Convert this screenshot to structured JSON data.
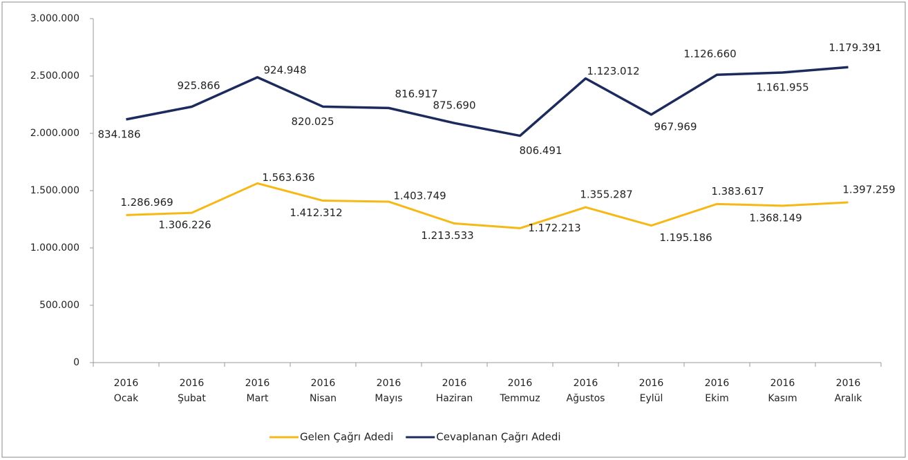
{
  "chart_data": {
    "type": "stacked-line",
    "categories": [
      "2016 Ocak",
      "2016 Şubat",
      "2016 Mart",
      "2016 Nisan",
      "2016 Mayıs",
      "2016 Haziran",
      "2016 Temmuz",
      "2016 Ağustos",
      "2016 Eylül",
      "2016 Ekim",
      "2016 Kasım",
      "2016 Aralık"
    ],
    "series": [
      {
        "name": "Gelen Çağrı Adedi",
        "color": "#f5b815",
        "values": [
          1286969,
          1306226,
          1563636,
          1412312,
          1403749,
          1213533,
          1172213,
          1355287,
          1195186,
          1383617,
          1368149,
          1397259
        ],
        "value_labels": [
          "1.286.969",
          "1.306.226",
          "1.563.636",
          "1.412.312",
          "1.403.749",
          "1.213.533",
          "1.172.213",
          "1.355.287",
          "1.195.186",
          "1.383.617",
          "1.368.149",
          "1.397.259"
        ]
      },
      {
        "name": "Cevaplanan Çağrı Adedi",
        "color": "#1c2a5c",
        "values": [
          834186,
          925866,
          924948,
          820025,
          816917,
          875690,
          806491,
          1123012,
          967969,
          1126660,
          1161955,
          1179391
        ],
        "value_labels": [
          "834.186",
          "925.866",
          "924.948",
          "820.025",
          "816.917",
          "875.690",
          "806.491",
          "1.123.012",
          "967.969",
          "1.126.660",
          "1.161.955",
          "1.179.391"
        ]
      }
    ],
    "ylim": [
      0,
      3000000
    ],
    "yticks": [
      0,
      {
        "value": 500000,
        "label": "500.000"
      },
      {
        "value": 1000000,
        "label": "1.000.000"
      },
      {
        "value": 1500000,
        "label": "1.500.000"
      },
      {
        "value": 2000000,
        "label": "2.000.000"
      },
      {
        "value": 2500000,
        "label": "2.500.000"
      },
      {
        "value": 3000000,
        "label": "3.000.000"
      }
    ],
    "legend": "bottom"
  }
}
